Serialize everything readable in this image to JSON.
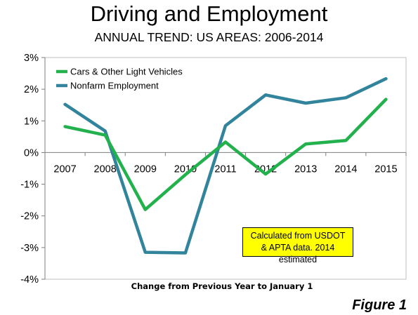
{
  "chart_data": {
    "type": "line",
    "title": "Driving and Employment",
    "subtitle": "ANNUAL TREND: US AREAS: 2006-2014",
    "xlabel": "Change from Previous Year to January 1",
    "ylabel": "",
    "categories": [
      "2007",
      "2008",
      "2009",
      "2010",
      "2011",
      "2012",
      "2013",
      "2014",
      "2015"
    ],
    "ylim": [
      -4,
      3
    ],
    "y_ticks": [
      "-4%",
      "-3%",
      "-2%",
      "-1%",
      "0%",
      "1%",
      "2%",
      "3%"
    ],
    "y_tick_values": [
      -4,
      -3,
      -2,
      -1,
      0,
      1,
      2,
      3
    ],
    "series": [
      {
        "name": "Cars & Other Light Vehicles",
        "color": "#22b14c",
        "values": [
          0.82,
          0.55,
          -1.8,
          -0.7,
          0.33,
          -0.68,
          0.27,
          0.38,
          1.68
        ]
      },
      {
        "name": "Nonfarm Employment",
        "color": "#31849b",
        "values": [
          1.52,
          0.68,
          -3.15,
          -3.17,
          0.85,
          1.82,
          1.56,
          1.73,
          2.33
        ]
      }
    ],
    "legend_position": "top-left",
    "annotation": [
      "Calculated from USDOT",
      "& APTA data. 2014 estimated"
    ],
    "annotation_color": "#ffff00",
    "figure_label": "Figure 1"
  }
}
